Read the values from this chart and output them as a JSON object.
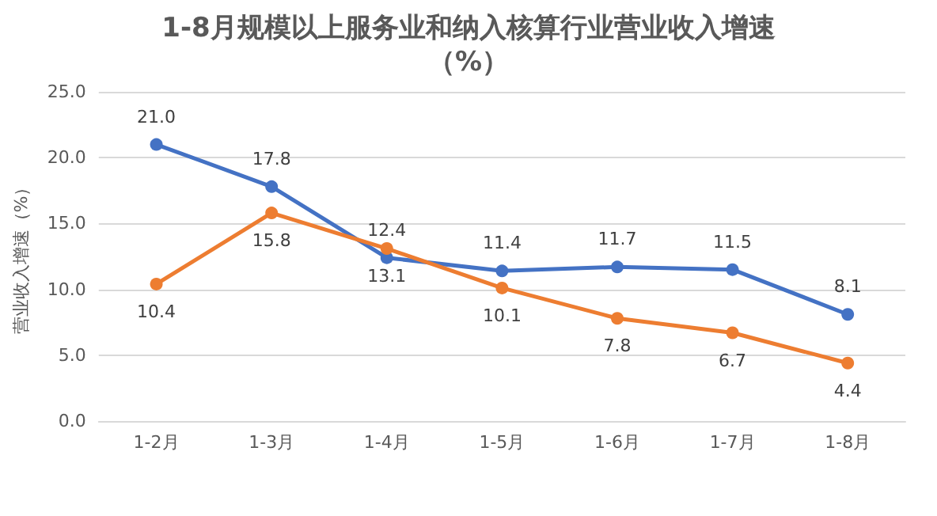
{
  "chart_data": {
    "type": "line",
    "title": "1-8月规模以上服务业和纳入核算行业营业收入增速",
    "subtitle": "（%）",
    "ylabel": "营业收入增速（%）",
    "categories": [
      "1-2月",
      "1-3月",
      "1-4月",
      "1-5月",
      "1-6月",
      "1-7月",
      "1-8月"
    ],
    "series": [
      {
        "color": "#4472c4",
        "values": [
          21.0,
          17.8,
          12.4,
          11.4,
          11.7,
          11.5,
          8.1
        ],
        "value_labels": [
          "21.0",
          "17.8",
          "12.4",
          "11.4",
          "11.7",
          "11.5",
          "8.1"
        ]
      },
      {
        "color": "#ed7d31",
        "values": [
          10.4,
          15.8,
          13.1,
          10.1,
          7.8,
          6.7,
          4.4
        ],
        "value_labels": [
          "10.4",
          "15.8",
          "13.1",
          "10.1",
          "7.8",
          "6.7",
          "4.4"
        ]
      }
    ],
    "ylim": [
      0,
      25
    ],
    "yticks": [
      {
        "value": 0,
        "label": "0.0"
      },
      {
        "value": 5,
        "label": "5.0"
      },
      {
        "value": 10,
        "label": "10.0"
      },
      {
        "value": 15,
        "label": "15.0"
      },
      {
        "value": 20,
        "label": "20.0"
      },
      {
        "value": 25,
        "label": "25.0"
      }
    ],
    "grid": "y",
    "marker": "circle",
    "line_style": "solid"
  }
}
